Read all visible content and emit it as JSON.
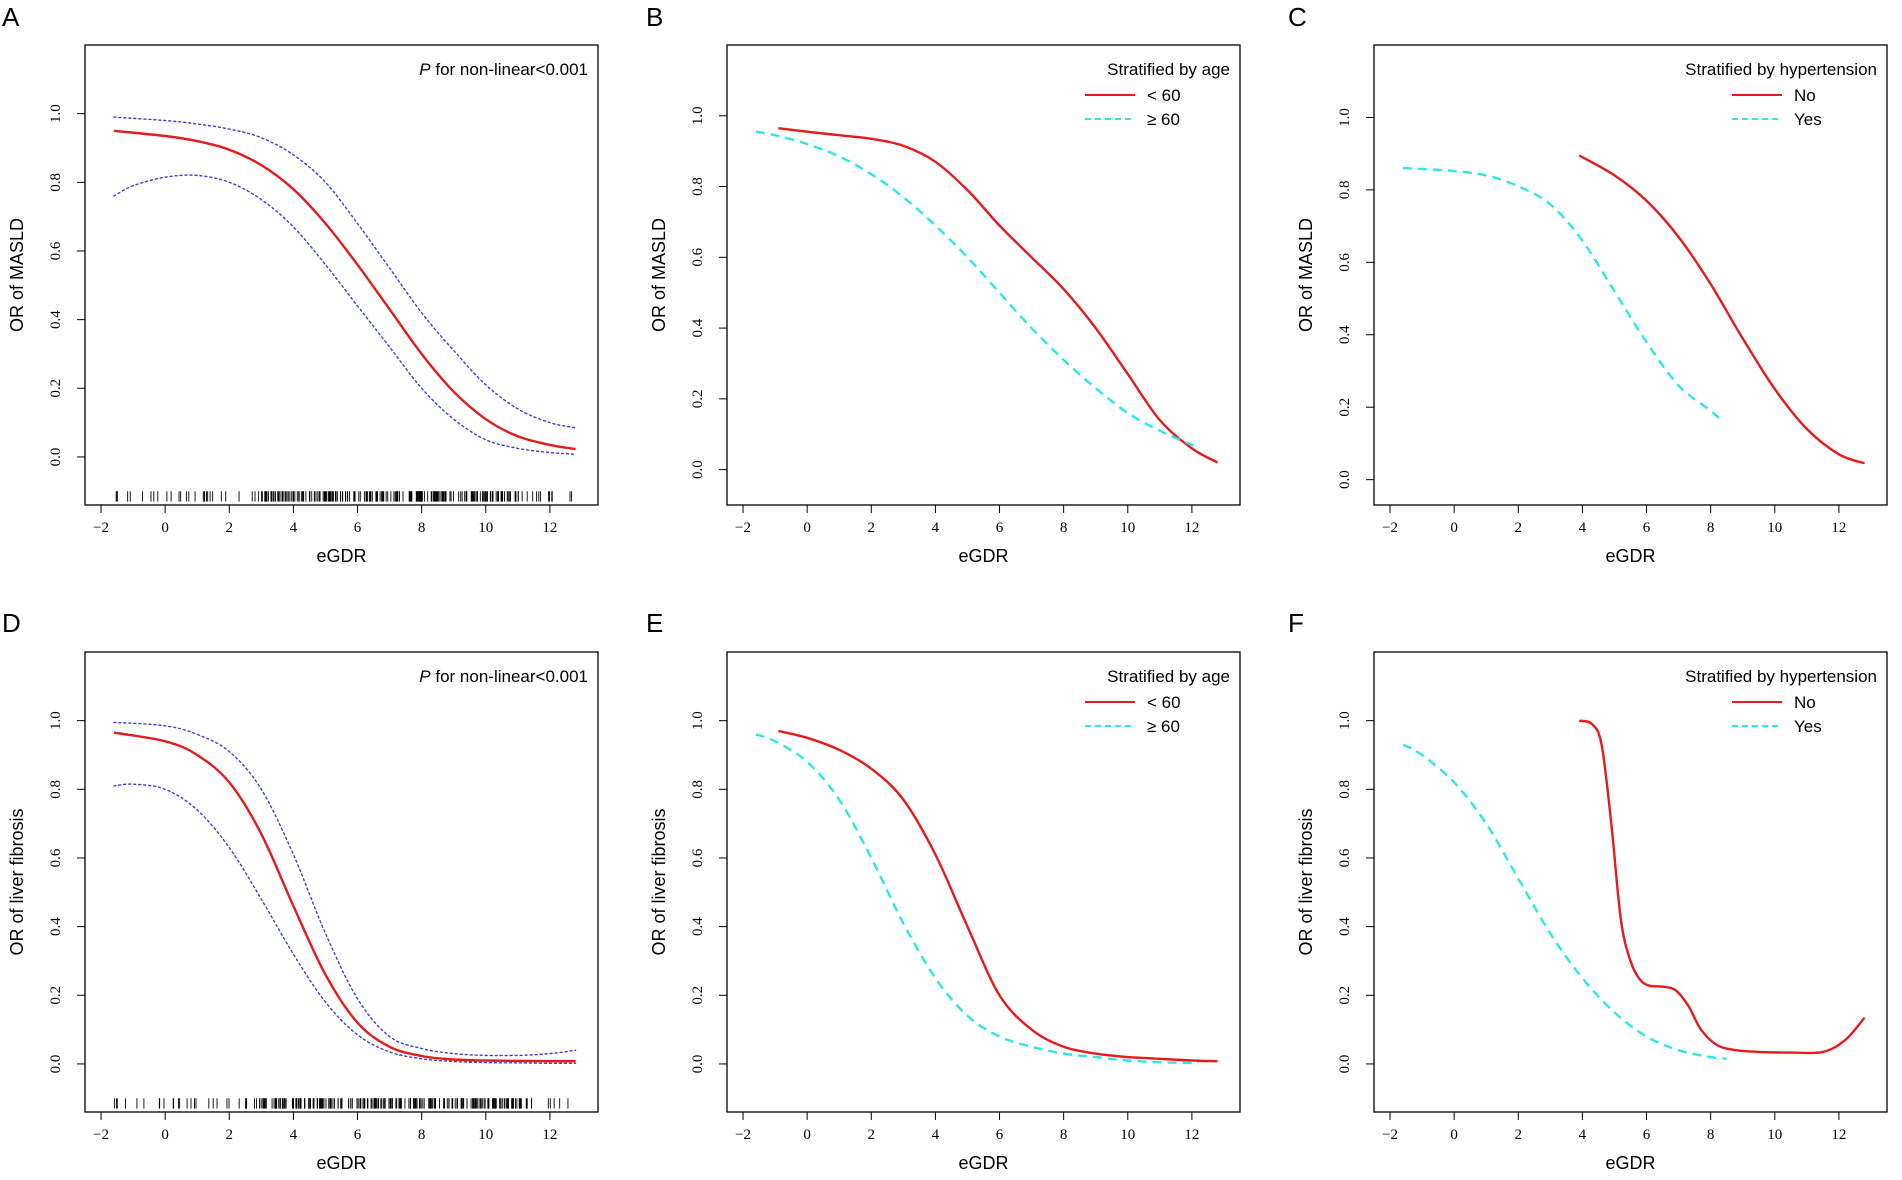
{
  "figure": {
    "colors": {
      "main": "#e41a1c",
      "secondary": "#2ee6e6",
      "ci": "#3d3dd6",
      "axis": "#000000"
    }
  },
  "chart_data": [
    {
      "panel": "A",
      "type": "line",
      "xlabel": "eGDR",
      "ylabel": "OR of MASLD",
      "xlim": [
        -2.5,
        13.5
      ],
      "ylim": [
        -0.14,
        1.2
      ],
      "xticks": [
        "-2",
        "0",
        "2",
        "4",
        "6",
        "8",
        "10",
        "12"
      ],
      "yticks": [
        "0.0",
        "0.2",
        "0.4",
        "0.6",
        "0.8",
        "1.0"
      ],
      "annotation": {
        "italic": "P",
        "text": " for non-linear<0.001"
      },
      "rug": true,
      "series": [
        {
          "name": "OR",
          "style": "solid",
          "color": "main",
          "x": [
            -1.6,
            0,
            1,
            2,
            3,
            4,
            5,
            6,
            7,
            8,
            9,
            10,
            11,
            12,
            12.8
          ],
          "y": [
            0.95,
            0.935,
            0.92,
            0.895,
            0.85,
            0.78,
            0.68,
            0.56,
            0.43,
            0.3,
            0.19,
            0.11,
            0.06,
            0.035,
            0.023
          ]
        },
        {
          "name": "Upper CI",
          "style": "dotted",
          "color": "ci",
          "x": [
            -1.6,
            0,
            1,
            2,
            3,
            4,
            5,
            6,
            7,
            8,
            9,
            10,
            11,
            12,
            12.8
          ],
          "y": [
            0.99,
            0.98,
            0.97,
            0.955,
            0.93,
            0.88,
            0.8,
            0.68,
            0.55,
            0.42,
            0.31,
            0.21,
            0.14,
            0.1,
            0.085
          ]
        },
        {
          "name": "Lower CI",
          "style": "dotted",
          "color": "ci",
          "x": [
            -1.6,
            -1,
            0,
            1,
            2,
            3,
            4,
            5,
            6,
            7,
            8,
            9,
            10,
            11,
            12,
            12.8
          ],
          "y": [
            0.76,
            0.79,
            0.815,
            0.82,
            0.8,
            0.75,
            0.67,
            0.56,
            0.44,
            0.32,
            0.2,
            0.11,
            0.05,
            0.025,
            0.013,
            0.008
          ]
        }
      ]
    },
    {
      "panel": "B",
      "type": "line",
      "xlabel": "eGDR",
      "ylabel": "OR of MASLD",
      "xlim": [
        -2.5,
        13.5
      ],
      "ylim": [
        -0.1,
        1.2
      ],
      "xticks": [
        "-2",
        "0",
        "2",
        "4",
        "6",
        "8",
        "10",
        "12"
      ],
      "yticks": [
        "0.0",
        "0.2",
        "0.4",
        "0.6",
        "0.8",
        "1.0"
      ],
      "legend_title": "Stratified by age",
      "series": [
        {
          "name": "< 60",
          "style": "solid",
          "color": "main",
          "x": [
            -0.9,
            0,
            1,
            2,
            3,
            4,
            5,
            6,
            7,
            8,
            9,
            10,
            11,
            12,
            12.8
          ],
          "y": [
            0.965,
            0.955,
            0.945,
            0.935,
            0.915,
            0.87,
            0.79,
            0.69,
            0.6,
            0.51,
            0.4,
            0.27,
            0.14,
            0.06,
            0.02
          ]
        },
        {
          "name": "≥ 60",
          "style": "dashed",
          "color": "secondary",
          "x": [
            -1.6,
            -1,
            0,
            1,
            2,
            3,
            4,
            5,
            6,
            7,
            8,
            9,
            10,
            11,
            12,
            12.2
          ],
          "y": [
            0.955,
            0.945,
            0.92,
            0.885,
            0.835,
            0.77,
            0.69,
            0.6,
            0.5,
            0.4,
            0.31,
            0.23,
            0.16,
            0.11,
            0.07,
            0.065
          ]
        }
      ]
    },
    {
      "panel": "C",
      "type": "line",
      "xlabel": "eGDR",
      "ylabel": "OR of MASLD",
      "xlim": [
        -2.5,
        13.5
      ],
      "ylim": [
        -0.07,
        1.2
      ],
      "xticks": [
        "-2",
        "0",
        "2",
        "4",
        "6",
        "8",
        "10",
        "12"
      ],
      "yticks": [
        "0.0",
        "0.2",
        "0.4",
        "0.6",
        "0.8",
        "1.0"
      ],
      "legend_title": "Stratified by hypertension",
      "series": [
        {
          "name": "No",
          "style": "solid",
          "color": "main",
          "x": [
            3.9,
            5,
            6,
            7,
            8,
            9,
            10,
            11,
            12,
            12.8
          ],
          "y": [
            0.895,
            0.84,
            0.77,
            0.67,
            0.54,
            0.39,
            0.25,
            0.14,
            0.07,
            0.045
          ]
        },
        {
          "name": "Yes",
          "style": "dashed",
          "color": "secondary",
          "x": [
            -1.6,
            -1,
            0,
            1,
            2,
            3,
            4,
            5,
            6,
            7,
            8,
            8.4
          ],
          "y": [
            0.86,
            0.858,
            0.852,
            0.84,
            0.81,
            0.76,
            0.66,
            0.52,
            0.38,
            0.26,
            0.19,
            0.16
          ]
        }
      ]
    },
    {
      "panel": "D",
      "type": "line",
      "xlabel": "eGDR",
      "ylabel": "OR of liver fibrosis",
      "xlim": [
        -2.5,
        13.5
      ],
      "ylim": [
        -0.14,
        1.2
      ],
      "xticks": [
        "-2",
        "0",
        "2",
        "4",
        "6",
        "8",
        "10",
        "12"
      ],
      "yticks": [
        "0.0",
        "0.2",
        "0.4",
        "0.6",
        "0.8",
        "1.0"
      ],
      "annotation": {
        "italic": "P",
        "text": " for non-linear<0.001"
      },
      "rug": true,
      "series": [
        {
          "name": "OR",
          "style": "solid",
          "color": "main",
          "x": [
            -1.6,
            0,
            1,
            2,
            3,
            4,
            5,
            6,
            7,
            8,
            9,
            10,
            11,
            12,
            12.8
          ],
          "y": [
            0.965,
            0.94,
            0.9,
            0.82,
            0.67,
            0.46,
            0.26,
            0.12,
            0.05,
            0.023,
            0.013,
            0.01,
            0.009,
            0.008,
            0.008
          ]
        },
        {
          "name": "Upper CI",
          "style": "dotted",
          "color": "ci",
          "x": [
            -1.6,
            0,
            1,
            2,
            3,
            4,
            5,
            6,
            7,
            8,
            9,
            10,
            11,
            12,
            12.8
          ],
          "y": [
            0.995,
            0.985,
            0.96,
            0.91,
            0.8,
            0.61,
            0.38,
            0.19,
            0.08,
            0.045,
            0.03,
            0.025,
            0.025,
            0.03,
            0.04
          ]
        },
        {
          "name": "Lower CI",
          "style": "dotted",
          "color": "ci",
          "x": [
            -1.6,
            -1,
            0,
            1,
            2,
            3,
            4,
            5,
            6,
            7,
            8,
            9,
            10,
            11,
            12,
            12.8
          ],
          "y": [
            0.81,
            0.815,
            0.8,
            0.74,
            0.63,
            0.48,
            0.32,
            0.18,
            0.085,
            0.035,
            0.015,
            0.007,
            0.004,
            0.003,
            0.002,
            0.002
          ]
        }
      ]
    },
    {
      "panel": "E",
      "type": "line",
      "xlabel": "eGDR",
      "ylabel": "OR of liver fibrosis",
      "xlim": [
        -2.5,
        13.5
      ],
      "ylim": [
        -0.14,
        1.2
      ],
      "xticks": [
        "-2",
        "0",
        "2",
        "4",
        "6",
        "8",
        "10",
        "12"
      ],
      "yticks": [
        "0.0",
        "0.2",
        "0.4",
        "0.6",
        "0.8",
        "1.0"
      ],
      "legend_title": "Stratified by age",
      "series": [
        {
          "name": "< 60",
          "style": "solid",
          "color": "main",
          "x": [
            -0.9,
            0,
            1,
            2,
            3,
            4,
            5,
            6,
            7,
            8,
            9,
            10,
            11,
            12,
            12.8
          ],
          "y": [
            0.97,
            0.95,
            0.915,
            0.86,
            0.77,
            0.61,
            0.4,
            0.2,
            0.1,
            0.05,
            0.03,
            0.02,
            0.015,
            0.01,
            0.008
          ]
        },
        {
          "name": "≥ 60",
          "style": "dashed",
          "color": "secondary",
          "x": [
            -1.6,
            -1,
            0,
            1,
            2,
            3,
            4,
            5,
            6,
            7,
            8,
            9,
            10,
            11,
            12,
            12.2
          ],
          "y": [
            0.96,
            0.94,
            0.88,
            0.77,
            0.6,
            0.41,
            0.25,
            0.14,
            0.08,
            0.05,
            0.03,
            0.02,
            0.01,
            0.005,
            0.003,
            0.003
          ]
        }
      ]
    },
    {
      "panel": "F",
      "type": "line",
      "xlabel": "eGDR",
      "ylabel": "OR of liver fibrosis",
      "xlim": [
        -2.5,
        13.5
      ],
      "ylim": [
        -0.14,
        1.2
      ],
      "xticks": [
        "-2",
        "0",
        "2",
        "4",
        "6",
        "8",
        "10",
        "12"
      ],
      "yticks": [
        "0.0",
        "0.2",
        "0.4",
        "0.6",
        "0.8",
        "1.0"
      ],
      "legend_title": "Stratified by hypertension",
      "series": [
        {
          "name": "No",
          "style": "solid",
          "color": "main",
          "x": [
            3.9,
            4.3,
            4.6,
            4.9,
            5.2,
            5.5,
            5.8,
            6.1,
            6.5,
            6.9,
            7.3,
            7.7,
            8.2,
            8.8,
            9.5,
            10.5,
            11.5,
            12.2,
            12.8
          ],
          "y": [
            1.0,
            0.99,
            0.93,
            0.7,
            0.42,
            0.3,
            0.245,
            0.228,
            0.225,
            0.215,
            0.17,
            0.1,
            0.055,
            0.04,
            0.035,
            0.033,
            0.035,
            0.07,
            0.135
          ]
        },
        {
          "name": "Yes",
          "style": "dashed",
          "color": "secondary",
          "x": [
            -1.6,
            -1,
            0,
            1,
            2,
            3,
            4,
            5,
            6,
            7,
            8,
            8.5
          ],
          "y": [
            0.93,
            0.9,
            0.82,
            0.7,
            0.54,
            0.38,
            0.25,
            0.15,
            0.08,
            0.04,
            0.02,
            0.015
          ]
        }
      ]
    }
  ]
}
